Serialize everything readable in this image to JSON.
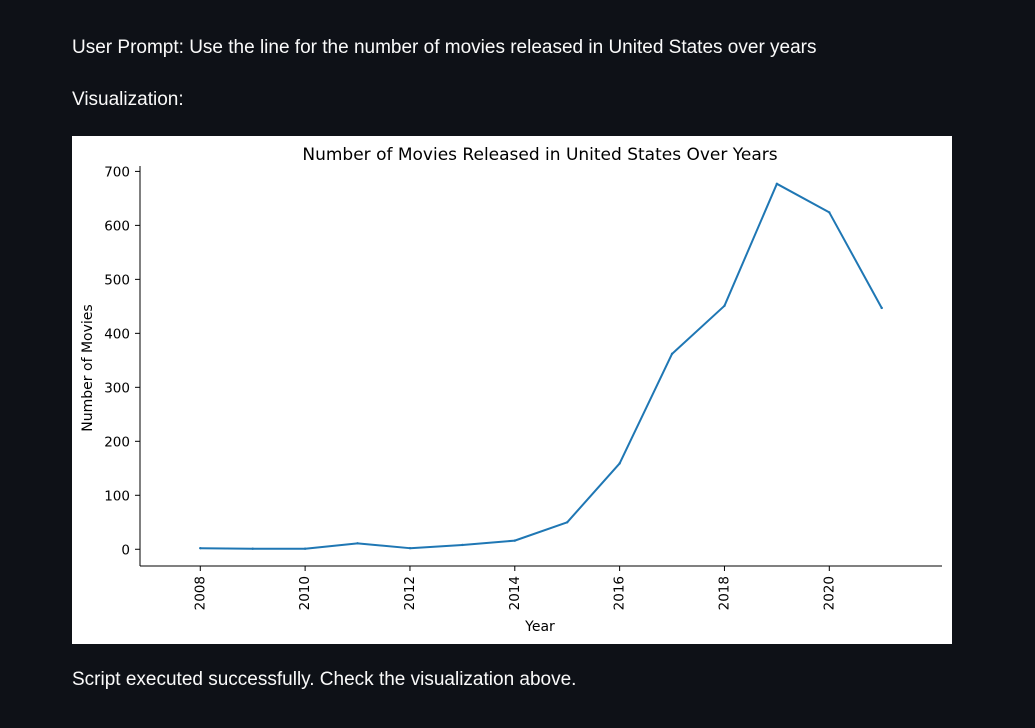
{
  "page": {
    "prompt": "User Prompt: Use the line for the number of movies released in United States over years",
    "visualization_label": "Visualization:",
    "status": "Script executed successfully. Check the visualization above."
  },
  "chart_data": {
    "type": "line",
    "title": "Number of Movies Released in United States Over Years",
    "xlabel": "Year",
    "ylabel": "Number of Movies",
    "x": [
      2008,
      2009,
      2010,
      2011,
      2012,
      2013,
      2014,
      2015,
      2016,
      2017,
      2018,
      2019,
      2020,
      2021
    ],
    "series": [
      {
        "values": [
          2,
          1,
          1,
          11,
          2,
          8,
          16,
          50,
          159,
          362,
          451,
          677,
          624,
          447
        ],
        "color": "#1f77b4"
      }
    ],
    "xlim": [
      2006.85,
      2022.15
    ],
    "ylim": [
      -31,
      710
    ],
    "xticks": [
      2008,
      2010,
      2012,
      2014,
      2016,
      2018,
      2020
    ],
    "yticks": [
      0,
      100,
      200,
      300,
      400,
      500,
      600,
      700
    ],
    "xtick_rotation": 90,
    "spines": "left-bottom",
    "grid": false
  }
}
